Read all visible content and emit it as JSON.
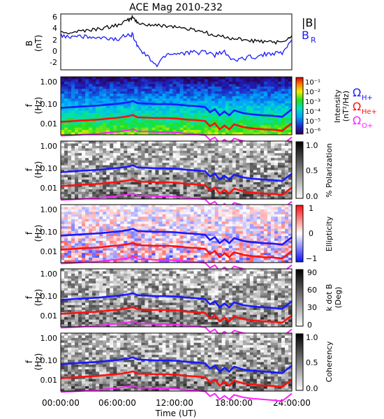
{
  "figure": {
    "title": "ACE Mag 2010-232",
    "xlabel": "Time (UT)",
    "xticks": [
      "00:00:00",
      "06:00:00",
      "12:00:00",
      "18:00:00",
      "24:00:00"
    ]
  },
  "colors": {
    "B_total": "#000000",
    "B_R": "#1a1aff",
    "H_plus": "#1a1aff",
    "He_plus": "#ff1010",
    "O_plus": "#ff20ff"
  },
  "chart_data": [
    {
      "type": "line",
      "id": "field",
      "ylabel": "B",
      "yunit": "(nT)",
      "yticks": [
        "6",
        "4",
        "2",
        "0",
        "-2"
      ],
      "ylim": [
        -3.8,
        6.6
      ],
      "x": [
        0,
        1,
        2,
        3,
        4,
        5,
        6,
        7,
        7.5,
        8,
        9,
        10,
        11,
        12,
        13,
        14,
        15,
        16,
        17,
        18,
        19,
        20,
        21,
        22,
        23,
        24
      ],
      "series": [
        {
          "name": "|B|",
          "values": [
            3.0,
            3.2,
            3.4,
            3.6,
            3.8,
            4.2,
            4.6,
            5.4,
            6.0,
            4.8,
            4.6,
            4.4,
            4.4,
            4.2,
            3.8,
            3.6,
            3.2,
            2.4,
            2.4,
            2.0,
            1.8,
            1.6,
            1.4,
            1.4,
            1.2,
            2.6
          ]
        },
        {
          "name": "B_R",
          "values": [
            2.6,
            2.4,
            2.6,
            2.2,
            2.0,
            2.0,
            1.8,
            3.0,
            2.6,
            0.4,
            -1.4,
            -3.0,
            -0.8,
            -0.8,
            -0.6,
            -0.6,
            -0.4,
            -1.0,
            -0.6,
            -2.2,
            -1.6,
            -1.4,
            -1.0,
            -0.6,
            -0.8,
            1.8
          ]
        }
      ],
      "legend": [
        "|B|",
        "B",
        "R"
      ]
    },
    {
      "type": "heatmap",
      "id": "intensity",
      "ylabel": "f",
      "yunit": "(Hz)",
      "yticks": [
        "1.00",
        "0.10",
        "0.01"
      ],
      "colorbar_label": "Intensity",
      "colorbar_unit": "(nT²/Hz)",
      "colorbar_ticks": [
        "10⁻¹",
        "10⁻²",
        "10⁻³",
        "10⁻⁴",
        "10⁻⁵",
        "10⁻⁶"
      ],
      "legend": [
        "Ω",
        "H+",
        "Ω",
        "He+",
        "Ω",
        "O+"
      ]
    },
    {
      "type": "heatmap",
      "id": "polarization",
      "ylabel": "f",
      "yunit": "(Hz)",
      "yticks": [
        "1.00",
        "0.10",
        "0.01"
      ],
      "colorbar_label": "% Polarization",
      "colorbar_ticks": [
        "1.0",
        "0.5",
        "0.0"
      ]
    },
    {
      "type": "heatmap",
      "id": "ellipticity",
      "ylabel": "f",
      "yunit": "(Hz)",
      "yticks": [
        "1.00",
        "0.10",
        "0.01"
      ],
      "colorbar_label": "Ellipticity",
      "colorbar_ticks": [
        "1",
        "0",
        "−1"
      ]
    },
    {
      "type": "heatmap",
      "id": "kdotb",
      "ylabel": "f",
      "yunit": "(Hz)",
      "yticks": [
        "1.00",
        "0.10",
        "0.01"
      ],
      "colorbar_label": "k dot B",
      "colorbar_unit": "(Deg)",
      "colorbar_ticks": [
        "90",
        "60",
        "30",
        "0"
      ]
    },
    {
      "type": "heatmap",
      "id": "coherency",
      "ylabel": "f",
      "yunit": "(Hz)",
      "yticks": [
        "1.00",
        "0.10",
        "0.01"
      ],
      "colorbar_label": "Coherency",
      "colorbar_ticks": [
        "1.0",
        "0.5",
        "0.0"
      ]
    }
  ],
  "gyrofrequency_hz": {
    "x": [
      0,
      1,
      2,
      3,
      4,
      5,
      6,
      7,
      7.5,
      8,
      9,
      10,
      11,
      12,
      13,
      14,
      15,
      15.5,
      16,
      16.5,
      17,
      17.5,
      18,
      19,
      20,
      21,
      22,
      23,
      24
    ],
    "H_plus": [
      0.046,
      0.049,
      0.052,
      0.055,
      0.058,
      0.064,
      0.07,
      0.08,
      0.09,
      0.073,
      0.07,
      0.067,
      0.067,
      0.064,
      0.058,
      0.055,
      0.05,
      0.03,
      0.04,
      0.022,
      0.032,
      0.022,
      0.036,
      0.027,
      0.024,
      0.022,
      0.021,
      0.019,
      0.04
    ],
    "He_plus": [
      0.0115,
      0.0122,
      0.013,
      0.0137,
      0.0145,
      0.016,
      0.0175,
      0.02,
      0.0225,
      0.018,
      0.0175,
      0.0168,
      0.0168,
      0.016,
      0.0145,
      0.0137,
      0.0125,
      0.0075,
      0.01,
      0.0055,
      0.008,
      0.0055,
      0.009,
      0.0068,
      0.006,
      0.0055,
      0.0053,
      0.0048,
      0.01
    ],
    "O_plus": [
      0.0029,
      0.003,
      0.0032,
      0.0034,
      0.0036,
      0.004,
      0.0044,
      0.005,
      0.0056,
      0.0045,
      0.0044,
      0.0042,
      0.0042,
      0.004,
      0.0036,
      0.0034,
      0.0031,
      0.0019,
      0.0025,
      0.0014,
      0.002,
      0.0014,
      0.0022,
      0.0017,
      0.0015,
      0.0014,
      0.0013,
      0.0012,
      0.0025
    ]
  }
}
